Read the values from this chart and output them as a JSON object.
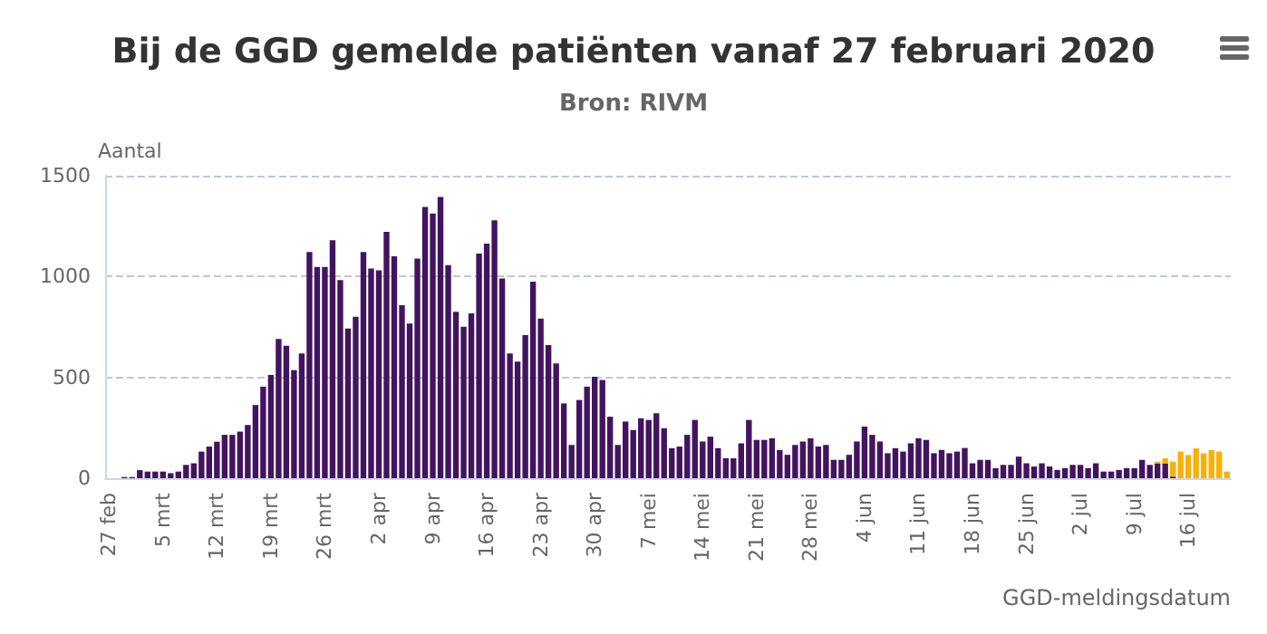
{
  "chart_data": {
    "type": "bar",
    "title": "Bij de GGD gemelde patiënten vanaf 27 februari 2020",
    "subtitle": "Bron: RIVM",
    "ylabel": "Aantal",
    "xlabel": "GGD-meldingsdatum",
    "categories": [
      "27 feb",
      null,
      null,
      null,
      null,
      null,
      null,
      "5 mrt",
      null,
      null,
      null,
      null,
      null,
      null,
      "12 mrt",
      null,
      null,
      null,
      null,
      null,
      null,
      "19 mrt",
      null,
      null,
      null,
      null,
      null,
      null,
      "26 mrt",
      null,
      null,
      null,
      null,
      null,
      null,
      "2 apr",
      null,
      null,
      null,
      null,
      null,
      null,
      "9 apr",
      null,
      null,
      null,
      null,
      null,
      null,
      "16 apr",
      null,
      null,
      null,
      null,
      null,
      null,
      "23 apr",
      null,
      null,
      null,
      null,
      null,
      null,
      "30 apr",
      null,
      null,
      null,
      null,
      null,
      null,
      "7 mei",
      null,
      null,
      null,
      null,
      null,
      null,
      "14 mei",
      null,
      null,
      null,
      null,
      null,
      null,
      "21 mei",
      null,
      null,
      null,
      null,
      null,
      null,
      "28 mei",
      null,
      null,
      null,
      null,
      null,
      null,
      "4 jun",
      null,
      null,
      null,
      null,
      null,
      null,
      "11 jun",
      null,
      null,
      null,
      null,
      null,
      null,
      "18 jun",
      null,
      null,
      null,
      null,
      null,
      null,
      "25 jun",
      null,
      null,
      null,
      null,
      null,
      null,
      "2 jul",
      null,
      null,
      null,
      null,
      null,
      null,
      "9 jul",
      null,
      null,
      null,
      null,
      null,
      null,
      "16 jul",
      null,
      null,
      null,
      null,
      null
    ],
    "stacked": true,
    "series": [
      {
        "color": "#42145f",
        "values": [
          0,
          0,
          6,
          6,
          40,
          33,
          33,
          33,
          25,
          33,
          66,
          74,
          132,
          157,
          181,
          215,
          215,
          231,
          264,
          363,
          454,
          512,
          690,
          657,
          536,
          619,
          1122,
          1048,
          1048,
          1180,
          982,
          742,
          800,
          1122,
          1040,
          1031,
          1221,
          1100,
          858,
          767,
          1089,
          1345,
          1312,
          1394,
          1056,
          825,
          751,
          817,
          1114,
          1163,
          1279,
          990,
          619,
          578,
          710,
          974,
          792,
          660,
          569,
          371,
          165,
          388,
          454,
          503,
          487,
          305,
          165,
          281,
          239,
          297,
          289,
          322,
          248,
          149,
          157,
          215,
          289,
          182,
          206,
          149,
          99,
          99,
          173,
          289,
          190,
          190,
          198,
          140,
          116,
          165,
          182,
          198,
          157,
          165,
          91,
          91,
          116,
          182,
          256,
          215,
          182,
          124,
          149,
          132,
          173,
          198,
          190,
          124,
          140,
          124,
          132,
          150,
          74,
          91,
          91,
          50,
          66,
          66,
          107,
          74,
          58,
          74,
          58,
          41,
          50,
          66,
          66,
          50,
          74,
          33,
          33,
          41,
          50,
          50,
          91,
          66,
          74,
          74,
          8,
          null,
          null,
          null,
          null,
          null,
          null,
          null
        ]
      },
      {
        "color": "#f9b000",
        "values": [
          null,
          null,
          null,
          null,
          null,
          null,
          null,
          null,
          null,
          null,
          null,
          null,
          null,
          null,
          null,
          null,
          null,
          null,
          null,
          null,
          null,
          null,
          null,
          null,
          null,
          null,
          null,
          null,
          null,
          null,
          null,
          null,
          null,
          null,
          null,
          null,
          null,
          null,
          null,
          null,
          null,
          null,
          null,
          null,
          null,
          null,
          null,
          null,
          null,
          null,
          null,
          null,
          null,
          null,
          null,
          null,
          null,
          null,
          null,
          null,
          null,
          null,
          null,
          null,
          null,
          null,
          null,
          null,
          null,
          null,
          null,
          null,
          null,
          null,
          null,
          null,
          null,
          null,
          null,
          null,
          null,
          null,
          null,
          null,
          null,
          null,
          null,
          null,
          null,
          null,
          null,
          null,
          null,
          null,
          null,
          null,
          null,
          null,
          null,
          null,
          null,
          null,
          null,
          null,
          null,
          null,
          null,
          null,
          null,
          null,
          null,
          null,
          null,
          null,
          null,
          null,
          null,
          null,
          null,
          null,
          null,
          null,
          null,
          null,
          null,
          null,
          null,
          null,
          null,
          null,
          null,
          null,
          null,
          null,
          null,
          null,
          8,
          25,
          74,
          132,
          115,
          148,
          124,
          140,
          132,
          33
        ]
      }
    ],
    "ylim": [
      0,
      1500
    ],
    "yticks": [
      0,
      500,
      1000,
      1500
    ],
    "grid": "y"
  }
}
